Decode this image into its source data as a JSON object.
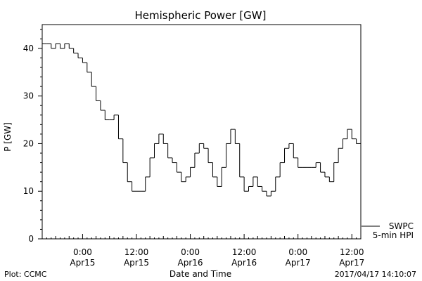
{
  "chart_data": {
    "type": "line",
    "title": "Hemispheric Power [GW]",
    "xlabel": "Date and Time",
    "ylabel": "P [GW]",
    "ylim": [
      0,
      45
    ],
    "yticks": [
      0,
      10,
      20,
      30,
      40
    ],
    "xlim": [
      "2017-04-14T15:00",
      "2017-04-17T14:00"
    ],
    "xticks": [
      {
        "time": "2017-04-15T00:00",
        "line1": "0:00",
        "line2": "Apr15"
      },
      {
        "time": "2017-04-15T12:00",
        "line1": "12:00",
        "line2": "Apr15"
      },
      {
        "time": "2017-04-16T00:00",
        "line1": "0:00",
        "line2": "Apr16"
      },
      {
        "time": "2017-04-16T12:00",
        "line1": "12:00",
        "line2": "Apr16"
      },
      {
        "time": "2017-04-17T00:00",
        "line1": "0:00",
        "line2": "Apr17"
      },
      {
        "time": "2017-04-17T12:00",
        "line1": "12:00",
        "line2": "Apr17"
      }
    ],
    "legend_placement": "bottom-right",
    "series": [
      {
        "name": "SWPC",
        "label2": "5-min HPI",
        "color": "#000000",
        "x": [
          "2017-04-14T15:00",
          "2017-04-14T16:00",
          "2017-04-14T17:00",
          "2017-04-14T18:00",
          "2017-04-14T19:00",
          "2017-04-14T20:00",
          "2017-04-14T21:00",
          "2017-04-14T22:00",
          "2017-04-14T23:00",
          "2017-04-15T00:00",
          "2017-04-15T01:00",
          "2017-04-15T02:00",
          "2017-04-15T03:00",
          "2017-04-15T04:00",
          "2017-04-15T05:00",
          "2017-04-15T06:00",
          "2017-04-15T07:00",
          "2017-04-15T08:00",
          "2017-04-15T09:00",
          "2017-04-15T10:00",
          "2017-04-15T11:00",
          "2017-04-15T12:00",
          "2017-04-15T13:00",
          "2017-04-15T14:00",
          "2017-04-15T15:00",
          "2017-04-15T16:00",
          "2017-04-15T17:00",
          "2017-04-15T18:00",
          "2017-04-15T19:00",
          "2017-04-15T20:00",
          "2017-04-15T21:00",
          "2017-04-15T22:00",
          "2017-04-15T23:00",
          "2017-04-16T00:00",
          "2017-04-16T01:00",
          "2017-04-16T02:00",
          "2017-04-16T03:00",
          "2017-04-16T04:00",
          "2017-04-16T05:00",
          "2017-04-16T06:00",
          "2017-04-16T07:00",
          "2017-04-16T08:00",
          "2017-04-16T09:00",
          "2017-04-16T10:00",
          "2017-04-16T11:00",
          "2017-04-16T12:00",
          "2017-04-16T13:00",
          "2017-04-16T14:00",
          "2017-04-16T15:00",
          "2017-04-16T16:00",
          "2017-04-16T17:00",
          "2017-04-16T18:00",
          "2017-04-16T19:00",
          "2017-04-16T20:00",
          "2017-04-16T21:00",
          "2017-04-16T22:00",
          "2017-04-16T23:00",
          "2017-04-17T00:00",
          "2017-04-17T01:00",
          "2017-04-17T02:00",
          "2017-04-17T03:00",
          "2017-04-17T04:00",
          "2017-04-17T05:00",
          "2017-04-17T06:00",
          "2017-04-17T07:00",
          "2017-04-17T08:00",
          "2017-04-17T09:00",
          "2017-04-17T10:00",
          "2017-04-17T11:00",
          "2017-04-17T12:00",
          "2017-04-17T13:00",
          "2017-04-17T14:00"
        ],
        "y": [
          41,
          41,
          40,
          41,
          40,
          41,
          40,
          39,
          38,
          37,
          35,
          32,
          29,
          27,
          25,
          25,
          26,
          21,
          16,
          12,
          10,
          10,
          10,
          13,
          17,
          20,
          22,
          20,
          17,
          16,
          14,
          12,
          13,
          15,
          18,
          20,
          19,
          16,
          13,
          11,
          15,
          20,
          23,
          20,
          13,
          10,
          11,
          13,
          11,
          10,
          9,
          10,
          13,
          16,
          19,
          20,
          17,
          15,
          15,
          15,
          15,
          16,
          14,
          13,
          12,
          16,
          19,
          21,
          23,
          21,
          20,
          18
        ]
      }
    ]
  },
  "footer": {
    "left": "Plot: CCMC",
    "right": "2017/04/17 14:10:07"
  }
}
